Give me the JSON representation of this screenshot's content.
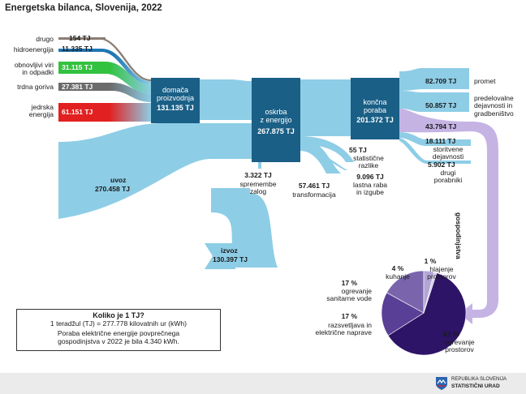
{
  "title": "Energetska bilanca, Slovenija, 2022",
  "sources": [
    {
      "label": "drugo",
      "value": "154 TJ",
      "color": "#8a7d73"
    },
    {
      "label": "hidroenergija",
      "value": "11.335 TJ",
      "color": "#1f77b4"
    },
    {
      "label": "obnovljivi viri\nin odpadki",
      "value": "31.115 TJ",
      "color": "#33c23f"
    },
    {
      "label": "trdna goriva",
      "value": "27.381 TJ",
      "color": "#666666"
    },
    {
      "label": "jedrska\nenergija",
      "value": "61.151 TJ",
      "color": "#e32020"
    }
  ],
  "nodes": {
    "domaca": {
      "label": "domača\nproizvodnja",
      "value": "131.135 TJ"
    },
    "oskrba": {
      "label": "oskrba\nz energijo",
      "value": "267.875 TJ"
    },
    "koncna": {
      "label": "končna\nporaba",
      "value": "201.372 TJ"
    }
  },
  "flows": {
    "uvoz": {
      "label": "uvoz",
      "value": "270.458 TJ"
    },
    "izvoz": {
      "label": "izvoz",
      "value": "130.397 TJ"
    },
    "spremembe": {
      "value": "3.322 TJ",
      "label": "spremembe\nzalog"
    },
    "transformacija": {
      "value": "57.461 TJ",
      "label": "transformacija"
    },
    "statisticne": {
      "value": "55 TJ",
      "label": "statistične\nrazlike"
    },
    "lastna": {
      "value": "9.096 TJ",
      "label": "lastna raba\nin izgube"
    }
  },
  "uses": [
    {
      "value": "82.709 TJ",
      "label": "promet"
    },
    {
      "value": "50.857 TJ",
      "label": "predelovalne\ndejavnosti in\ngradbeništvo"
    },
    {
      "value": "43.794 TJ",
      "label": ""
    },
    {
      "value": "18.111 TJ",
      "label": "storitvene\ndejavnosti"
    },
    {
      "value": "5.902 TJ",
      "label": "drugi\nporabniki"
    }
  ],
  "gospodinjstva_label": "gospodinjstva",
  "pie": {
    "slices": [
      {
        "pct": "61 %",
        "label": "ogrevanje\nprostorov",
        "value": 61,
        "color": "#2e1466"
      },
      {
        "pct": "17 %",
        "label": "razsvetljava in\nelektrične naprave",
        "value": 17,
        "color": "#5a3f96"
      },
      {
        "pct": "17 %",
        "label": "ogrevanje\nsanitarne vode",
        "value": 17,
        "color": "#7a65ad"
      },
      {
        "pct": "4 %",
        "label": "kuhanje",
        "value": 4,
        "color": "#b3a6d6"
      },
      {
        "pct": "1 %",
        "label": "hlajenje\nprostorov",
        "value": 1,
        "color": "#d6cdea"
      }
    ]
  },
  "info": {
    "heading": "Koliko je 1 TJ?",
    "line1": "1 teradžul (TJ) = 277.778 kilovatnih ur (kWh)",
    "line2": "Poraba električne energije povprečnega",
    "line3": "gospodinjstva v 2022 je bila 4.340 kWh."
  },
  "logo": {
    "line1": "REPUBLIKA SLOVENIJA",
    "line2": "STATISTIČNI URAD"
  }
}
